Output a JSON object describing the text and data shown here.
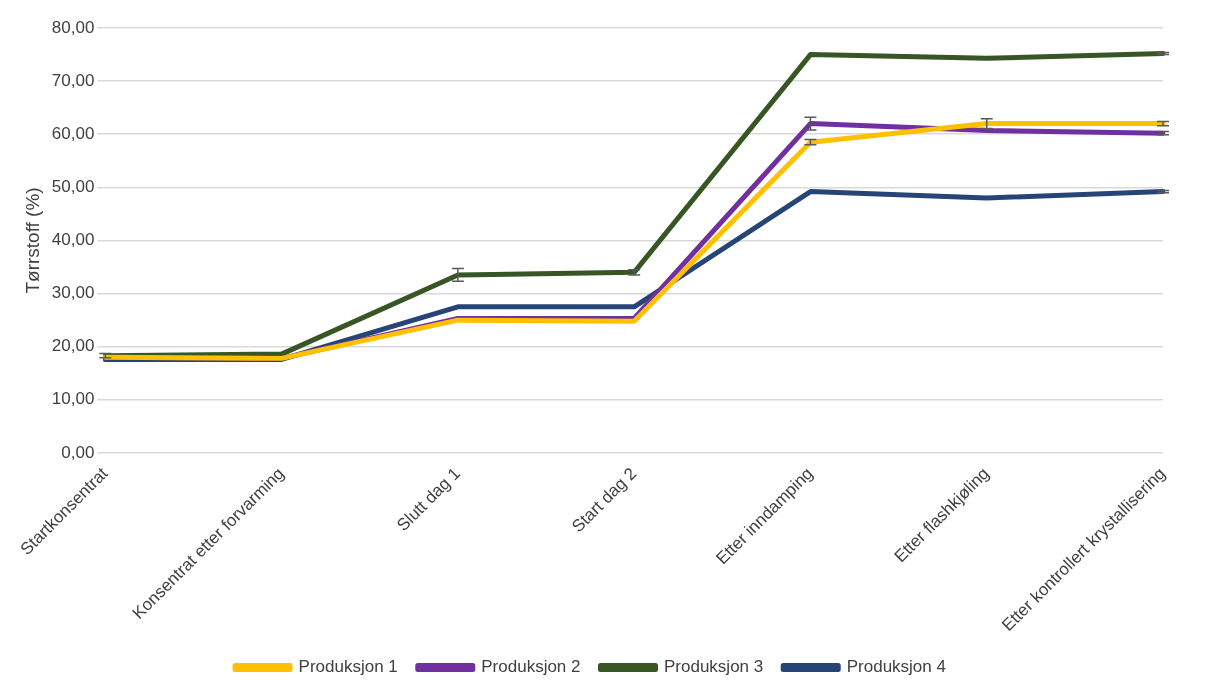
{
  "chart_data": {
    "type": "line",
    "ylabel": "Tørrstoff (%)",
    "categories": [
      "Startkonsentrat",
      "Konsentrat etter forvarming",
      "Slutt dag 1",
      "Start dag 2",
      "Etter inndamping",
      "Etter flashkjøling",
      "Etter kontrollert krystallisering"
    ],
    "series": [
      {
        "name": "Produksjon 1",
        "color": "#ffc000",
        "values": [
          18,
          17.8,
          25,
          24.8,
          58.5,
          62,
          62
        ],
        "errors": [
          null,
          null,
          null,
          null,
          0.5,
          0.9,
          0.4
        ]
      },
      {
        "name": "Produksjon 2",
        "color": "#7030a0",
        "values": [
          18,
          17.8,
          25.3,
          25.3,
          62,
          60.7,
          60.2
        ],
        "errors": [
          null,
          null,
          null,
          null,
          1.2,
          null,
          0.3
        ]
      },
      {
        "name": "Produksjon 3",
        "color": "#375623",
        "values": [
          18.3,
          18.6,
          33.5,
          34,
          75,
          74.3,
          75.2
        ],
        "errors": [
          0.4,
          null,
          1.2,
          0.5,
          null,
          null,
          0.2
        ]
      },
      {
        "name": "Produksjon 4",
        "color": "#264478",
        "values": [
          17.6,
          17.6,
          27.5,
          27.5,
          49.2,
          48,
          49.2
        ],
        "errors": [
          null,
          null,
          null,
          null,
          null,
          null,
          0.2
        ]
      }
    ],
    "ylim": [
      0,
      80
    ],
    "yticks": [
      {
        "value": 0,
        "label": "0,00"
      },
      {
        "value": 10,
        "label": "10,00"
      },
      {
        "value": 20,
        "label": "20,00"
      },
      {
        "value": 30,
        "label": "30,00"
      },
      {
        "value": 40,
        "label": "40,00"
      },
      {
        "value": 50,
        "label": "50,00"
      },
      {
        "value": 60,
        "label": "60,00"
      },
      {
        "value": 70,
        "label": "70,00"
      },
      {
        "value": 80,
        "label": "80,00"
      }
    ],
    "grid": "y",
    "legend": "bottom",
    "marker": "none",
    "line_style": "solid"
  }
}
